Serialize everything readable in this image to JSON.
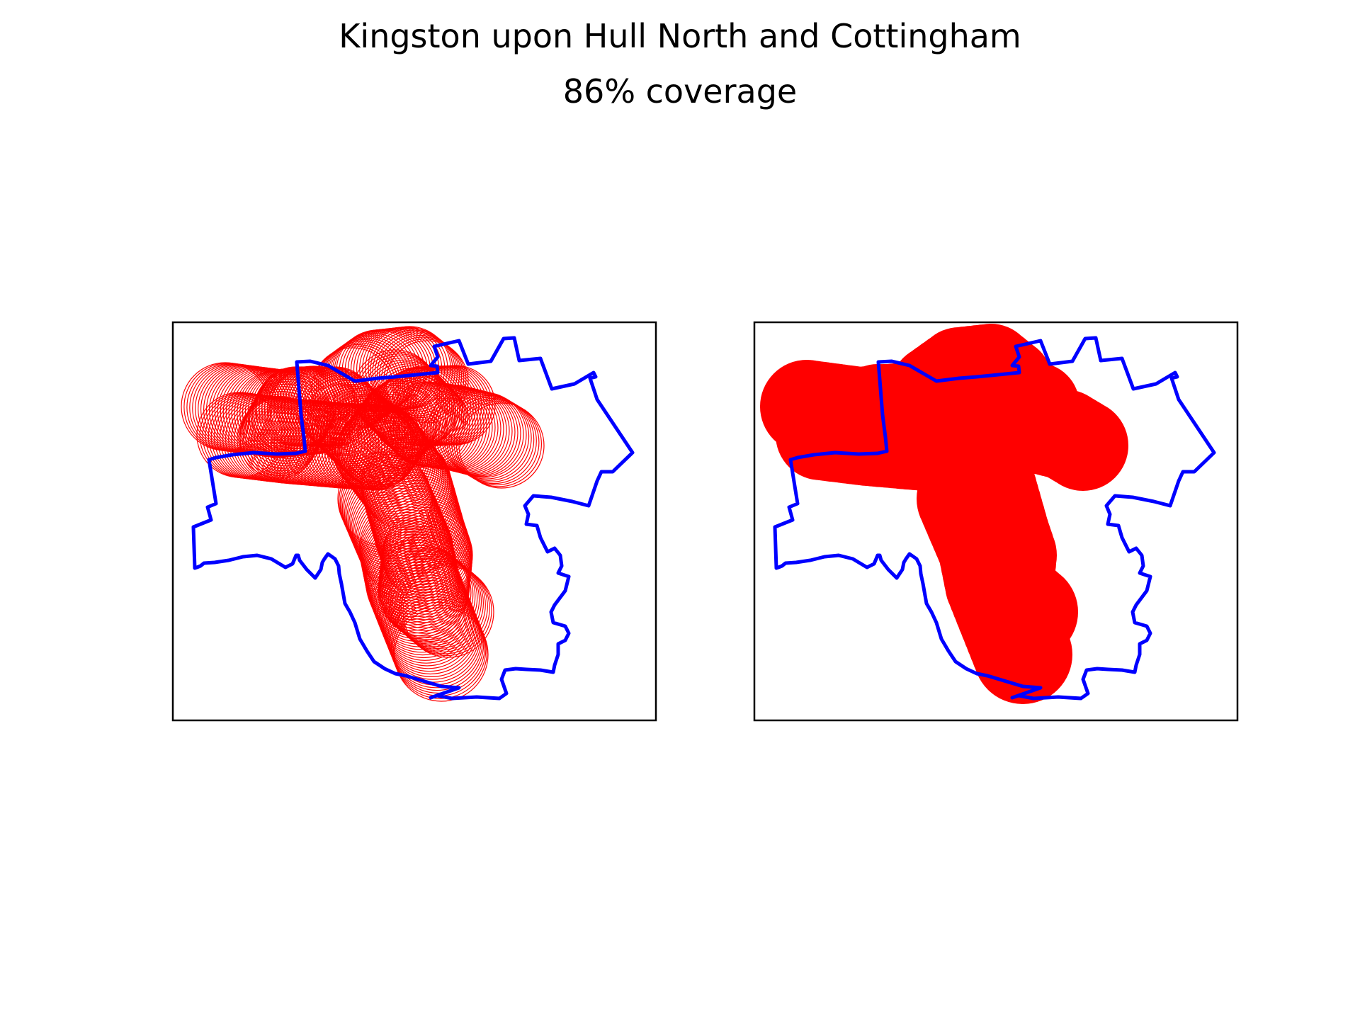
{
  "figure": {
    "title": "Kingston upon Hull North and Cottingham",
    "subtitle": "86% coverage",
    "coverage_percent": 86
  },
  "panels": [
    {
      "name": "coverage-circles-outline",
      "fill_style": "outline"
    },
    {
      "name": "coverage-union-filled",
      "fill_style": "filled"
    }
  ],
  "colors": {
    "boundary": "#0000ff",
    "coverage": "#ff0000",
    "frame": "#000000",
    "background": "#ffffff"
  },
  "legend": null,
  "axes_visible": false
}
